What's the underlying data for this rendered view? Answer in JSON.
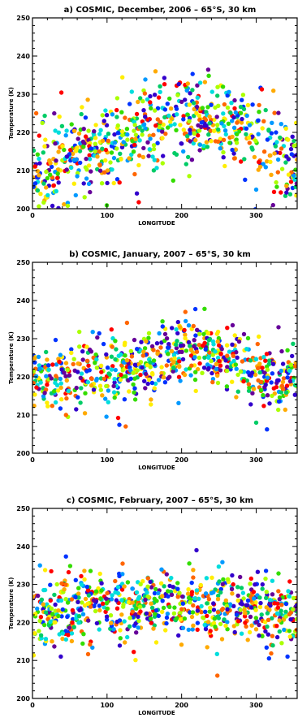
{
  "chart_data": [
    {
      "type": "scatter",
      "title": "a) COSMIC, December, 2006 – 65°S, 30 km",
      "xlabel": "LONGITUDE",
      "ylabel": "Temperature (K)",
      "xlim": [
        0,
        355
      ],
      "ylim": [
        200,
        250
      ],
      "xticks": [
        0,
        100,
        200,
        300
      ],
      "yticks": [
        200,
        210,
        220,
        230,
        240,
        250
      ],
      "base_curve": [
        [
          0,
          210
        ],
        [
          50,
          213
        ],
        [
          100,
          216
        ],
        [
          150,
          221
        ],
        [
          200,
          224
        ],
        [
          250,
          223
        ],
        [
          300,
          219
        ],
        [
          355,
          212
        ]
      ],
      "spread": 5.5,
      "n_points": 700,
      "points_sample": [
        [
          5,
          225
        ],
        [
          20,
          208
        ],
        [
          60,
          216
        ],
        [
          140,
          204
        ],
        [
          165,
          236
        ],
        [
          200,
          228
        ],
        [
          225,
          233
        ],
        [
          300,
          205
        ],
        [
          340,
          221
        ]
      ],
      "colors": [
        "#ff0000",
        "#ff6600",
        "#ffaa00",
        "#ffee00",
        "#aaff00",
        "#33dd00",
        "#00cc66",
        "#00dddd",
        "#0099ff",
        "#0033ff",
        "#3300cc",
        "#660099"
      ]
    },
    {
      "type": "scatter",
      "title": "b) COSMIC, January, 2007 – 65°S, 30 km",
      "xlabel": "LONGITUDE",
      "ylabel": "Temperature (K)",
      "xlim": [
        0,
        355
      ],
      "ylim": [
        200,
        250
      ],
      "xticks": [
        0,
        100,
        200,
        300
      ],
      "yticks": [
        200,
        210,
        220,
        230,
        240,
        250
      ],
      "base_curve": [
        [
          0,
          221
        ],
        [
          50,
          220
        ],
        [
          100,
          221
        ],
        [
          150,
          223
        ],
        [
          200,
          227
        ],
        [
          250,
          225
        ],
        [
          300,
          221
        ],
        [
          355,
          219
        ]
      ],
      "spread": 4.5,
      "n_points": 700,
      "points_sample": [
        [
          45,
          210
        ],
        [
          125,
          207
        ],
        [
          205,
          237
        ],
        [
          300,
          208
        ],
        [
          330,
          233
        ]
      ],
      "colors": [
        "#ff0000",
        "#ff6600",
        "#ffaa00",
        "#ffee00",
        "#aaff00",
        "#33dd00",
        "#00cc66",
        "#00dddd",
        "#0099ff",
        "#0033ff",
        "#3300cc",
        "#660099"
      ]
    },
    {
      "type": "scatter",
      "title": "c) COSMIC, February, 2007 – 65°S, 30 km",
      "xlabel": "LONGITUDE",
      "ylabel": "Temperature (K)",
      "xlim": [
        0,
        355
      ],
      "ylim": [
        200,
        250
      ],
      "xticks": [
        0,
        100,
        200,
        300
      ],
      "yticks": [
        200,
        210,
        220,
        230,
        240,
        250
      ],
      "base_curve": [
        [
          0,
          223
        ],
        [
          50,
          224
        ],
        [
          100,
          225
        ],
        [
          150,
          225
        ],
        [
          200,
          224
        ],
        [
          250,
          224
        ],
        [
          300,
          224
        ],
        [
          355,
          222
        ]
      ],
      "spread": 4.5,
      "n_points": 750,
      "points_sample": [
        [
          10,
          235
        ],
        [
          38,
          211
        ],
        [
          220,
          239
        ],
        [
          248,
          206
        ],
        [
          342,
          211
        ]
      ],
      "colors": [
        "#ff0000",
        "#ff6600",
        "#ffaa00",
        "#ffee00",
        "#aaff00",
        "#33dd00",
        "#00cc66",
        "#00dddd",
        "#0099ff",
        "#0033ff",
        "#3300cc",
        "#660099"
      ]
    }
  ]
}
